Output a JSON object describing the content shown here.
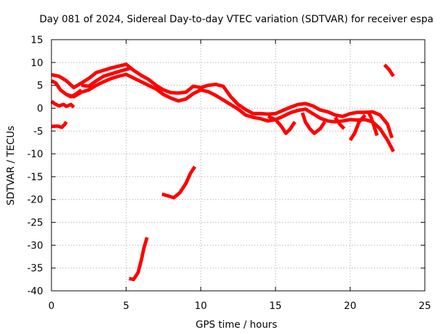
{
  "chart_data": {
    "type": "scatter",
    "title": "Day 081 of 2024, Sidereal Day-to-day VTEC variation (SDTVAR) for receiver espa",
    "xlabel": "GPS time / hours",
    "ylabel": "SDTVAR / TECUs",
    "xlim": [
      0,
      25
    ],
    "ylim": [
      -40,
      15
    ],
    "x_ticks": [
      0,
      5,
      10,
      15,
      20,
      25
    ],
    "y_ticks": [
      -40,
      -35,
      -30,
      -25,
      -20,
      -15,
      -10,
      -5,
      0,
      5,
      10,
      15
    ],
    "grid": true,
    "series_color": "#ff0000",
    "series": [
      {
        "name": "arc-main-upper",
        "points": [
          [
            0.0,
            7.3
          ],
          [
            0.5,
            7.0
          ],
          [
            1.0,
            6.0
          ],
          [
            1.5,
            4.5
          ],
          [
            2.0,
            5.5
          ],
          [
            2.5,
            6.5
          ],
          [
            3.0,
            7.8
          ],
          [
            3.5,
            8.3
          ],
          [
            4.0,
            8.8
          ],
          [
            4.5,
            9.2
          ],
          [
            5.0,
            9.6
          ],
          [
            5.5,
            8.3
          ],
          [
            6.0,
            7.2
          ],
          [
            6.5,
            6.3
          ],
          [
            7.0,
            5.0
          ],
          [
            7.5,
            4.0
          ],
          [
            8.0,
            3.4
          ],
          [
            8.5,
            3.3
          ],
          [
            9.0,
            3.5
          ],
          [
            9.5,
            4.8
          ],
          [
            10.0,
            4.5
          ],
          [
            10.5,
            5.0
          ],
          [
            11.0,
            5.2
          ],
          [
            11.5,
            4.8
          ],
          [
            12.0,
            2.5
          ],
          [
            12.5,
            0.8
          ],
          [
            13.0,
            -0.3
          ],
          [
            13.5,
            -1.2
          ],
          [
            14.0,
            -1.2
          ],
          [
            14.5,
            -1.3
          ],
          [
            15.0,
            -1.2
          ],
          [
            15.5,
            -0.5
          ],
          [
            16.0,
            0.2
          ],
          [
            16.5,
            0.8
          ],
          [
            17.0,
            1.0
          ],
          [
            17.5,
            0.5
          ],
          [
            18.0,
            -0.4
          ],
          [
            18.5,
            -0.8
          ],
          [
            19.0,
            -1.5
          ],
          [
            19.5,
            -1.8
          ],
          [
            20.0,
            -1.2
          ],
          [
            20.5,
            -0.9
          ],
          [
            21.0,
            -0.9
          ],
          [
            21.5,
            -0.8
          ],
          [
            22.0,
            -1.5
          ],
          [
            22.5,
            -3.5
          ],
          [
            22.8,
            -6.5
          ]
        ]
      },
      {
        "name": "arc-main-lower",
        "points": [
          [
            1.0,
            3.0
          ],
          [
            1.5,
            2.5
          ],
          [
            2.0,
            3.5
          ],
          [
            2.5,
            4.0
          ],
          [
            3.0,
            5.0
          ],
          [
            3.5,
            5.8
          ],
          [
            4.0,
            6.5
          ],
          [
            4.5,
            7.0
          ],
          [
            5.0,
            7.4
          ],
          [
            5.5,
            6.6
          ],
          [
            6.0,
            5.8
          ],
          [
            6.5,
            5.0
          ],
          [
            7.0,
            4.2
          ],
          [
            7.5,
            3.0
          ],
          [
            8.0,
            2.2
          ],
          [
            8.5,
            1.6
          ],
          [
            9.0,
            2.0
          ],
          [
            9.5,
            3.2
          ],
          [
            10.0,
            4.0
          ],
          [
            10.5,
            3.6
          ],
          [
            11.0,
            2.8
          ],
          [
            11.5,
            1.8
          ],
          [
            12.0,
            0.8
          ],
          [
            12.5,
            -0.2
          ],
          [
            13.0,
            -1.5
          ],
          [
            13.5,
            -2.0
          ],
          [
            14.0,
            -2.3
          ],
          [
            14.5,
            -2.8
          ],
          [
            15.0,
            -2.5
          ],
          [
            15.5,
            -1.8
          ],
          [
            16.0,
            -1.0
          ],
          [
            16.5,
            -0.5
          ],
          [
            17.0,
            -0.2
          ],
          [
            17.5,
            -1.2
          ],
          [
            18.0,
            -2.2
          ],
          [
            18.5,
            -2.8
          ],
          [
            19.0,
            -3.0
          ],
          [
            19.5,
            -2.8
          ],
          [
            20.0,
            -2.5
          ],
          [
            20.5,
            -2.6
          ],
          [
            21.0,
            -2.5
          ],
          [
            21.5,
            -3.0
          ],
          [
            22.0,
            -4.5
          ],
          [
            22.5,
            -7.0
          ],
          [
            22.9,
            -9.5
          ]
        ]
      },
      {
        "name": "arc-early-low",
        "points": [
          [
            0.0,
            1.5
          ],
          [
            0.2,
            1.0
          ],
          [
            0.5,
            0.5
          ],
          [
            0.8,
            0.8
          ],
          [
            1.0,
            0.4
          ],
          [
            1.3,
            0.8
          ],
          [
            1.5,
            0.2
          ]
        ]
      },
      {
        "name": "arc-early-loop",
        "points": [
          [
            0.0,
            6.0
          ],
          [
            0.3,
            5.5
          ],
          [
            0.6,
            4.0
          ],
          [
            1.0,
            3.0
          ],
          [
            1.3,
            2.5
          ],
          [
            1.6,
            3.0
          ],
          [
            2.0,
            4.0
          ]
        ]
      },
      {
        "name": "arc-early-neg",
        "points": [
          [
            0.0,
            -4.0
          ],
          [
            0.4,
            -3.9
          ],
          [
            0.7,
            -4.2
          ],
          [
            0.9,
            -3.5
          ],
          [
            1.0,
            -3.0
          ]
        ]
      },
      {
        "name": "arc-morning",
        "points": [
          [
            2.0,
            5.0
          ],
          [
            2.5,
            4.8
          ],
          [
            3.0,
            6.0
          ],
          [
            3.5,
            7.0
          ],
          [
            4.0,
            7.5
          ],
          [
            4.5,
            8.0
          ],
          [
            5.0,
            8.5
          ],
          [
            5.4,
            8.8
          ]
        ]
      },
      {
        "name": "arc-dip-6",
        "points": [
          [
            5.2,
            -37.3
          ],
          [
            5.5,
            -37.5
          ],
          [
            5.8,
            -36.0
          ],
          [
            6.0,
            -33.5
          ],
          [
            6.2,
            -30.5
          ],
          [
            6.4,
            -28.3
          ]
        ]
      },
      {
        "name": "arc-dip-8",
        "points": [
          [
            7.4,
            -18.8
          ],
          [
            7.8,
            -19.2
          ],
          [
            8.2,
            -19.6
          ],
          [
            8.6,
            -18.5
          ],
          [
            9.0,
            -16.5
          ],
          [
            9.3,
            -14.3
          ],
          [
            9.6,
            -12.8
          ]
        ]
      },
      {
        "name": "arc-15",
        "points": [
          [
            14.5,
            -1.8
          ],
          [
            15.0,
            -2.5
          ],
          [
            15.4,
            -4.0
          ],
          [
            15.7,
            -5.5
          ],
          [
            16.0,
            -4.5
          ],
          [
            16.3,
            -3.0
          ]
        ]
      },
      {
        "name": "arc-17",
        "points": [
          [
            16.8,
            -1.0
          ],
          [
            17.0,
            -3.0
          ],
          [
            17.3,
            -4.5
          ],
          [
            17.6,
            -5.5
          ],
          [
            18.0,
            -4.5
          ],
          [
            18.3,
            -3.0
          ]
        ]
      },
      {
        "name": "arc-19",
        "points": [
          [
            19.0,
            -2.0
          ],
          [
            19.3,
            -3.5
          ],
          [
            19.6,
            -4.5
          ]
        ]
      },
      {
        "name": "arc-20",
        "points": [
          [
            20.0,
            -7.0
          ],
          [
            20.3,
            -5.5
          ],
          [
            20.6,
            -3.0
          ],
          [
            21.0,
            -1.5
          ]
        ]
      },
      {
        "name": "arc-21",
        "points": [
          [
            21.2,
            -0.8
          ],
          [
            21.4,
            -2.0
          ],
          [
            21.6,
            -4.0
          ],
          [
            21.8,
            -6.0
          ]
        ]
      },
      {
        "name": "arc-22-8",
        "points": [
          [
            22.3,
            9.5
          ],
          [
            22.6,
            8.5
          ],
          [
            22.9,
            7.0
          ]
        ]
      }
    ]
  }
}
